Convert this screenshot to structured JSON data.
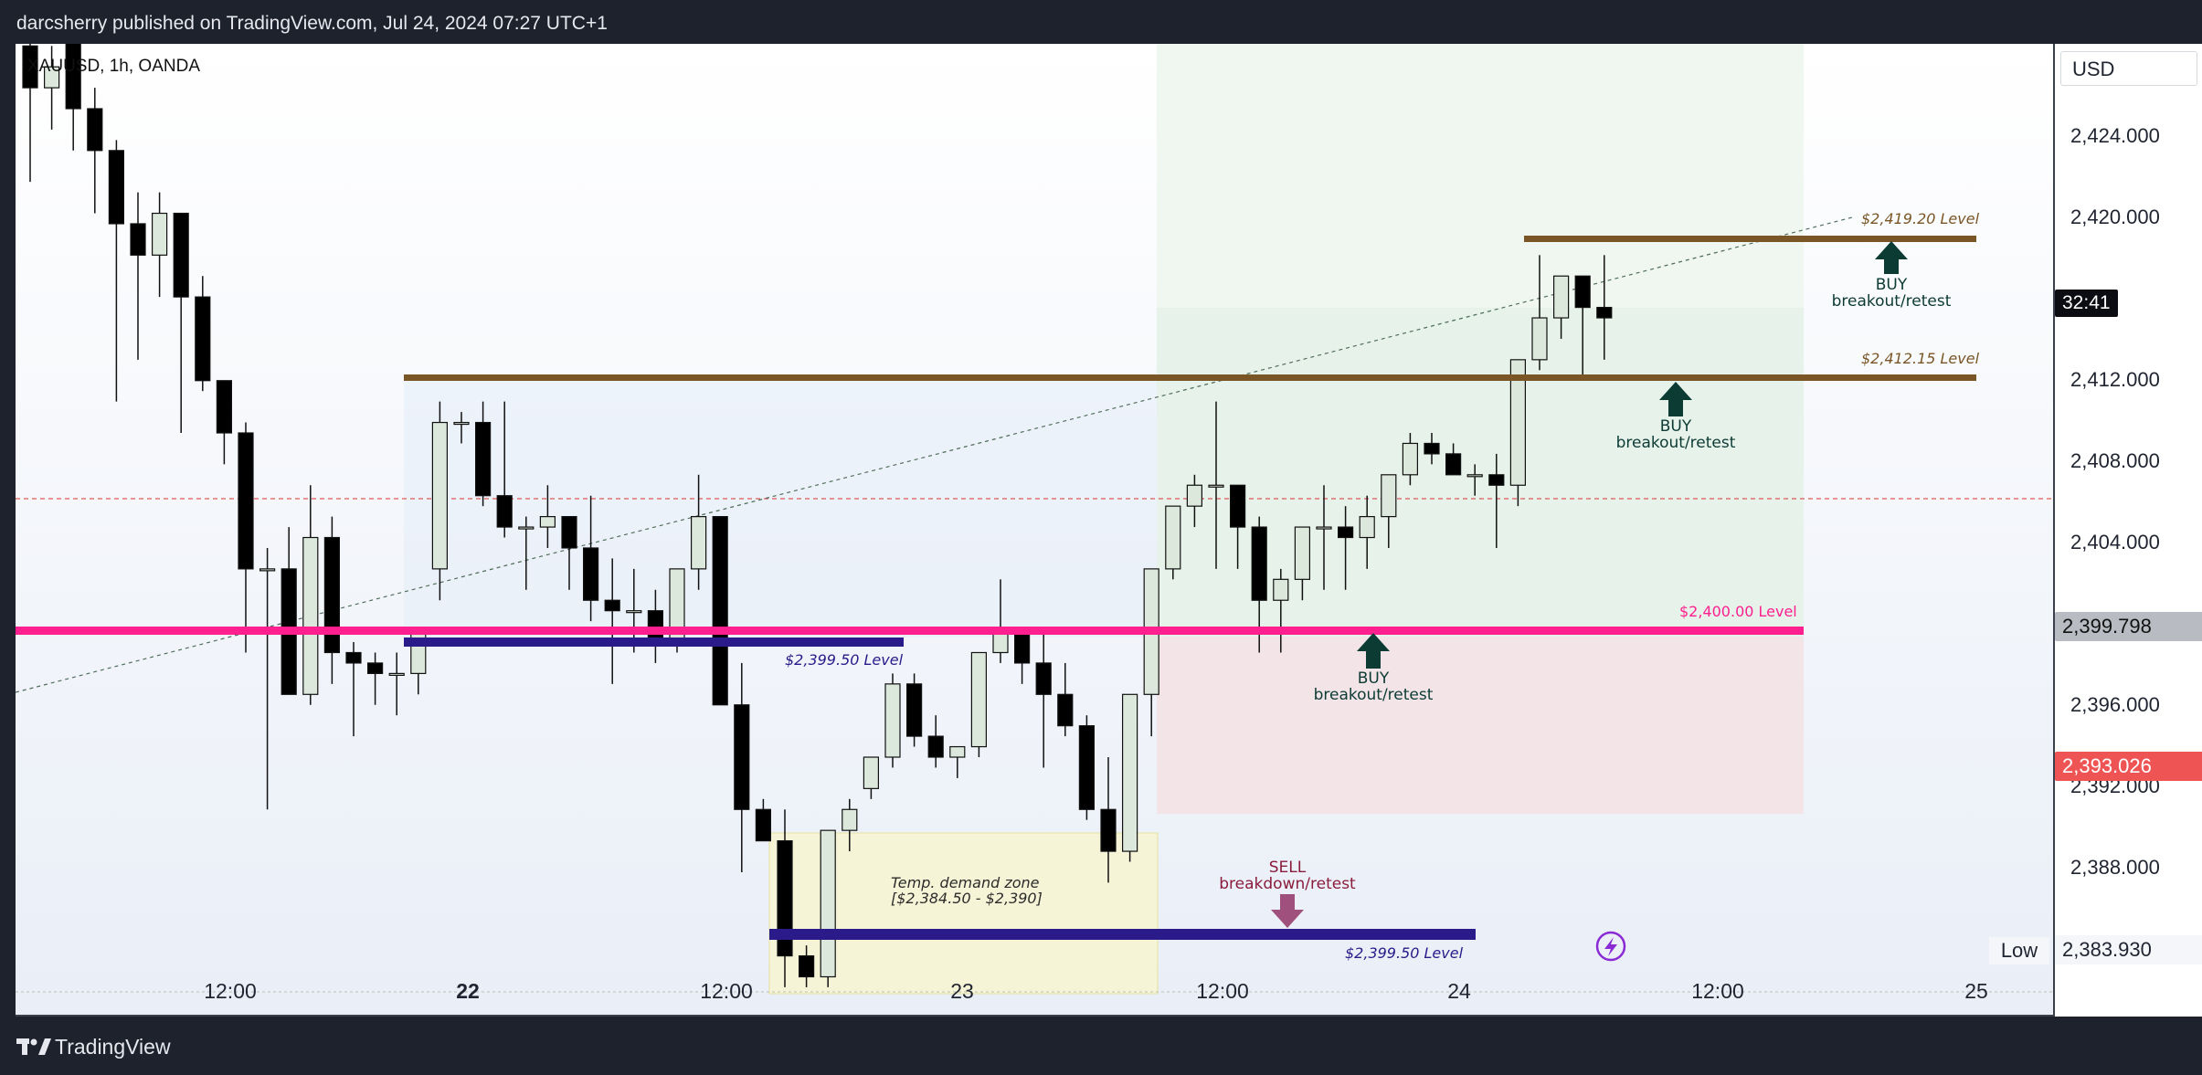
{
  "header": {
    "publish_line": "darcsherry published on TradingView.com, Jul 24, 2024 07:27 UTC+1"
  },
  "symbol": {
    "label": "XAUUSD, 1h, OANDA"
  },
  "axis": {
    "currency": "USD",
    "ticks": [
      "2,424.000",
      "2,420.000",
      "2,412.000",
      "2,408.000",
      "2,404.000",
      "2,396.000",
      "2,392.000",
      "2,388.000",
      "2,383.930"
    ],
    "countdown": "32:41",
    "current_price": "2,399.798",
    "red_price": "2,393.026",
    "low_label": "Low"
  },
  "xaxis": {
    "labels": [
      "12:00",
      "22",
      "12:00",
      "23",
      "12:00",
      "24",
      "12:00",
      "25"
    ]
  },
  "footer": {
    "brand": "TradingView"
  },
  "annotations": {
    "level_2419": "$2,419.20 Level",
    "level_2412": "$2,412.15 Level",
    "level_2400": "$2,400.00 Level",
    "level_2399_a": "$2,399.50 Level",
    "level_2399_b": "$2,399.50 Level",
    "buy1_a": "BUY",
    "buy1_b": "breakout/retest",
    "buy2_a": "BUY",
    "buy2_b": "breakout/retest",
    "buy3_a": "BUY",
    "buy3_b": "breakout/retest",
    "sell_a": "SELL",
    "sell_b": "breakdown/retest",
    "demand_a": "Temp. demand zone",
    "demand_b": "[$2,384.50 - $2,390]"
  },
  "colors": {
    "bull": "#dde8dc",
    "bear": "#000000",
    "magenta": "#ff1f8e",
    "navy": "#2b1a8a",
    "brown": "#7a5526",
    "buy_arrow": "#0c3b34",
    "sell_arrow": "#a0507c",
    "red_tag": "#ef5454"
  },
  "chart_data": {
    "type": "candlestick",
    "title": "XAUUSD, 1h, OANDA",
    "ylim": [
      2382.6,
      2429.1
    ],
    "candles": [
      {
        "o": 2429.0,
        "h": 2429.2,
        "l": 2422.5,
        "c": 2427.0
      },
      {
        "o": 2427.0,
        "h": 2429.0,
        "l": 2425.0,
        "c": 2428.0
      },
      {
        "o": 2429.5,
        "h": 2429.2,
        "l": 2424.0,
        "c": 2426.0
      },
      {
        "o": 2426.0,
        "h": 2427.0,
        "l": 2421.0,
        "c": 2424.0
      },
      {
        "o": 2424.0,
        "h": 2424.5,
        "l": 2412.0,
        "c": 2420.5
      },
      {
        "o": 2420.5,
        "h": 2422.0,
        "l": 2414.0,
        "c": 2419.0
      },
      {
        "o": 2419.0,
        "h": 2422.0,
        "l": 2417.0,
        "c": 2421.0
      },
      {
        "o": 2421.0,
        "h": 2421.0,
        "l": 2410.5,
        "c": 2417.0
      },
      {
        "o": 2417.0,
        "h": 2418.0,
        "l": 2412.5,
        "c": 2413.0
      },
      {
        "o": 2413.0,
        "h": 2413.0,
        "l": 2409.0,
        "c": 2410.5
      },
      {
        "o": 2410.5,
        "h": 2411.0,
        "l": 2400.0,
        "c": 2404.0
      },
      {
        "o": 2404.0,
        "h": 2405.0,
        "l": 2392.5,
        "c": 2404.0
      },
      {
        "o": 2404.0,
        "h": 2406.0,
        "l": 2398.0,
        "c": 2398.0
      },
      {
        "o": 2398.0,
        "h": 2408.0,
        "l": 2397.5,
        "c": 2405.5
      },
      {
        "o": 2405.5,
        "h": 2406.5,
        "l": 2398.5,
        "c": 2400.0
      },
      {
        "o": 2400.0,
        "h": 2400.5,
        "l": 2396.0,
        "c": 2399.5
      },
      {
        "o": 2399.5,
        "h": 2400.0,
        "l": 2397.5,
        "c": 2399.0
      },
      {
        "o": 2399.0,
        "h": 2400.0,
        "l": 2397.0,
        "c": 2399.0
      },
      {
        "o": 2399.0,
        "h": 2401.0,
        "l": 2398.0,
        "c": 2401.0
      },
      {
        "o": 2404.0,
        "h": 2412.0,
        "l": 2402.5,
        "c": 2411.0
      },
      {
        "o": 2411.0,
        "h": 2411.5,
        "l": 2410.0,
        "c": 2411.0
      },
      {
        "o": 2411.0,
        "h": 2412.0,
        "l": 2407.0,
        "c": 2407.5
      },
      {
        "o": 2407.5,
        "h": 2412.0,
        "l": 2405.5,
        "c": 2406.0
      },
      {
        "o": 2406.0,
        "h": 2406.5,
        "l": 2403.0,
        "c": 2406.0
      },
      {
        "o": 2406.0,
        "h": 2408.0,
        "l": 2405.0,
        "c": 2406.5
      },
      {
        "o": 2406.5,
        "h": 2406.5,
        "l": 2403.0,
        "c": 2405.0
      },
      {
        "o": 2405.0,
        "h": 2407.5,
        "l": 2401.5,
        "c": 2402.5
      },
      {
        "o": 2402.5,
        "h": 2404.5,
        "l": 2398.5,
        "c": 2402.0
      },
      {
        "o": 2402.0,
        "h": 2404.0,
        "l": 2400.0,
        "c": 2402.0
      },
      {
        "o": 2402.0,
        "h": 2403.0,
        "l": 2399.5,
        "c": 2400.5
      },
      {
        "o": 2400.5,
        "h": 2404.0,
        "l": 2400.0,
        "c": 2404.0
      },
      {
        "o": 2404.0,
        "h": 2408.5,
        "l": 2403.0,
        "c": 2406.5
      },
      {
        "o": 2406.5,
        "h": 2406.5,
        "l": 2397.5,
        "c": 2397.5
      },
      {
        "o": 2397.5,
        "h": 2399.5,
        "l": 2389.5,
        "c": 2392.5
      },
      {
        "o": 2392.5,
        "h": 2393.0,
        "l": 2391.0,
        "c": 2391.0
      },
      {
        "o": 2391.0,
        "h": 2392.5,
        "l": 2384.0,
        "c": 2385.5
      },
      {
        "o": 2385.5,
        "h": 2386.0,
        "l": 2384.0,
        "c": 2384.5
      },
      {
        "o": 2384.5,
        "h": 2391.5,
        "l": 2384.0,
        "c": 2391.5
      },
      {
        "o": 2391.5,
        "h": 2393.0,
        "l": 2390.5,
        "c": 2392.5
      },
      {
        "o": 2393.5,
        "h": 2395.0,
        "l": 2393.0,
        "c": 2395.0
      },
      {
        "o": 2395.0,
        "h": 2399.0,
        "l": 2394.5,
        "c": 2398.5
      },
      {
        "o": 2398.5,
        "h": 2399.0,
        "l": 2395.5,
        "c": 2396.0
      },
      {
        "o": 2396.0,
        "h": 2397.0,
        "l": 2394.5,
        "c": 2395.0
      },
      {
        "o": 2395.0,
        "h": 2395.5,
        "l": 2394.0,
        "c": 2395.5
      },
      {
        "o": 2395.5,
        "h": 2400.0,
        "l": 2395.0,
        "c": 2400.0
      },
      {
        "o": 2400.0,
        "h": 2403.5,
        "l": 2399.5,
        "c": 2401.0
      },
      {
        "o": 2401.0,
        "h": 2401.0,
        "l": 2398.5,
        "c": 2399.5
      },
      {
        "o": 2399.5,
        "h": 2401.0,
        "l": 2394.5,
        "c": 2398.0
      },
      {
        "o": 2398.0,
        "h": 2399.5,
        "l": 2396.0,
        "c": 2396.5
      },
      {
        "o": 2396.5,
        "h": 2397.0,
        "l": 2392.0,
        "c": 2392.5
      },
      {
        "o": 2392.5,
        "h": 2395.0,
        "l": 2389.0,
        "c": 2390.5
      },
      {
        "o": 2390.5,
        "h": 2398.0,
        "l": 2390.0,
        "c": 2398.0
      },
      {
        "o": 2398.0,
        "h": 2404.0,
        "l": 2396.0,
        "c": 2404.0
      },
      {
        "o": 2404.0,
        "h": 2407.0,
        "l": 2403.5,
        "c": 2407.0
      },
      {
        "o": 2407.0,
        "h": 2408.5,
        "l": 2406.0,
        "c": 2408.0
      },
      {
        "o": 2408.0,
        "h": 2412.0,
        "l": 2404.0,
        "c": 2408.0
      },
      {
        "o": 2408.0,
        "h": 2408.0,
        "l": 2404.0,
        "c": 2406.0
      },
      {
        "o": 2406.0,
        "h": 2406.5,
        "l": 2400.0,
        "c": 2402.5
      },
      {
        "o": 2402.5,
        "h": 2404.0,
        "l": 2400.0,
        "c": 2403.5
      },
      {
        "o": 2403.5,
        "h": 2406.0,
        "l": 2402.5,
        "c": 2406.0
      },
      {
        "o": 2406.0,
        "h": 2408.0,
        "l": 2403.0,
        "c": 2406.0
      },
      {
        "o": 2406.0,
        "h": 2407.0,
        "l": 2403.0,
        "c": 2405.5
      },
      {
        "o": 2405.5,
        "h": 2407.5,
        "l": 2404.0,
        "c": 2406.5
      },
      {
        "o": 2406.5,
        "h": 2408.5,
        "l": 2405.0,
        "c": 2408.5
      },
      {
        "o": 2408.5,
        "h": 2410.5,
        "l": 2408.0,
        "c": 2410.0
      },
      {
        "o": 2410.0,
        "h": 2410.5,
        "l": 2409.0,
        "c": 2409.5
      },
      {
        "o": 2409.5,
        "h": 2410.0,
        "l": 2408.5,
        "c": 2408.5
      },
      {
        "o": 2408.5,
        "h": 2409.0,
        "l": 2407.5,
        "c": 2408.5
      },
      {
        "o": 2408.5,
        "h": 2409.5,
        "l": 2405.0,
        "c": 2408.0
      },
      {
        "o": 2408.0,
        "h": 2414.0,
        "l": 2407.0,
        "c": 2414.0
      },
      {
        "o": 2414.0,
        "h": 2419.0,
        "l": 2413.5,
        "c": 2416.0
      },
      {
        "o": 2416.0,
        "h": 2418.0,
        "l": 2415.0,
        "c": 2418.0
      },
      {
        "o": 2418.0,
        "h": 2418.0,
        "l": 2413.0,
        "c": 2416.5
      },
      {
        "o": 2416.5,
        "h": 2419.0,
        "l": 2414.0,
        "c": 2416.0
      }
    ]
  }
}
